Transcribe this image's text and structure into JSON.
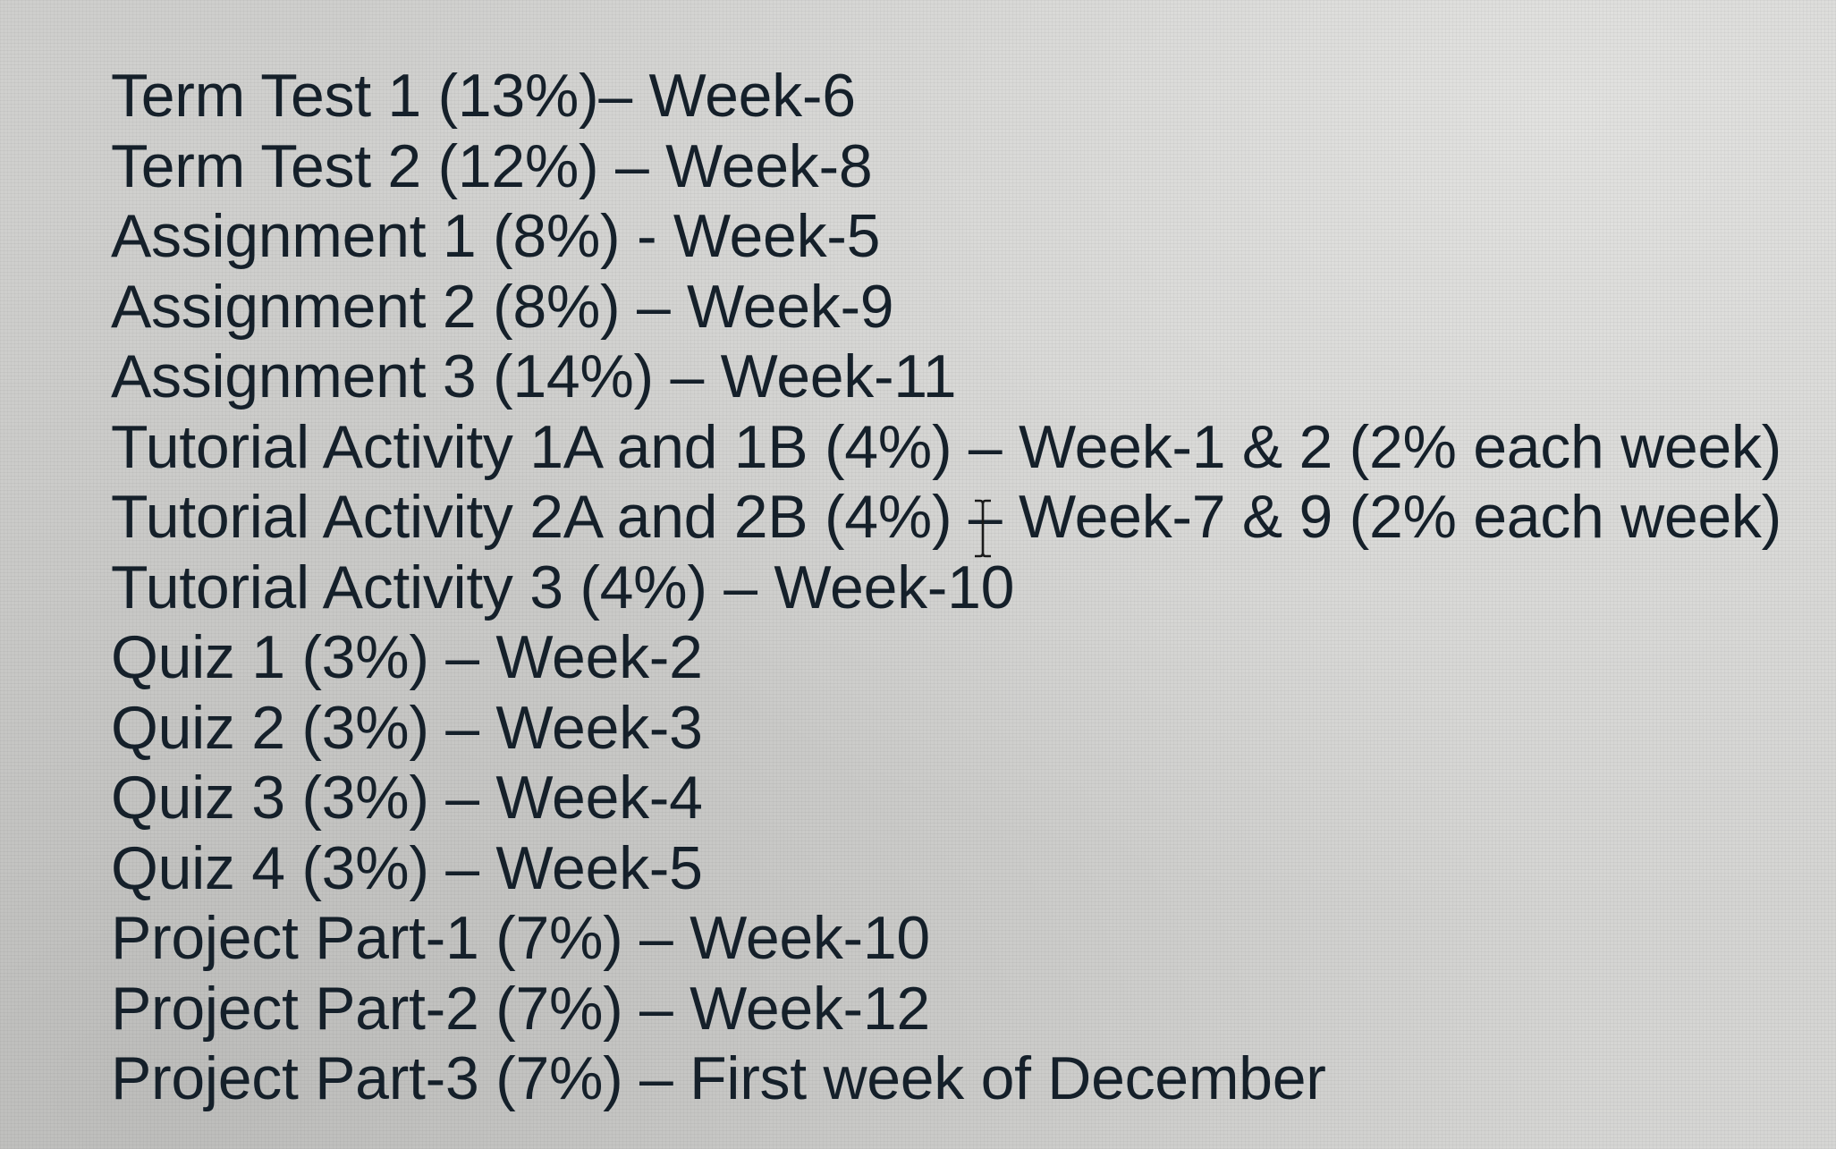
{
  "document": {
    "lines": [
      "Term Test 1 (13%)– Week-6",
      "Term Test 2 (12%) – Week-8",
      "Assignment 1 (8%) - Week-5",
      "Assignment 2 (8%) – Week-9",
      "Assignment 3 (14%) – Week-11",
      "Tutorial Activity 1A and 1B (4%) – Week-1 & 2 (2% each week)",
      "Tutorial Activity 2A and 2B (4%) – Week-7 & 9 (2% each week)",
      "Tutorial Activity 3 (4%) – Week-10",
      "Quiz 1 (3%) – Week-2",
      "Quiz 2 (3%) – Week-3",
      "Quiz 3 (3%) – Week-4",
      "Quiz 4 (3%) – Week-5",
      "Project Part-1 (7%) – Week-10",
      "Project Part-2 (7%) – Week-12",
      "Project Part-3 (7%) – First week of December"
    ]
  },
  "cursor": {
    "icon": "text-ibeam-cursor-icon"
  },
  "colors": {
    "text": "#15202a",
    "background": "#d2d2d0"
  }
}
